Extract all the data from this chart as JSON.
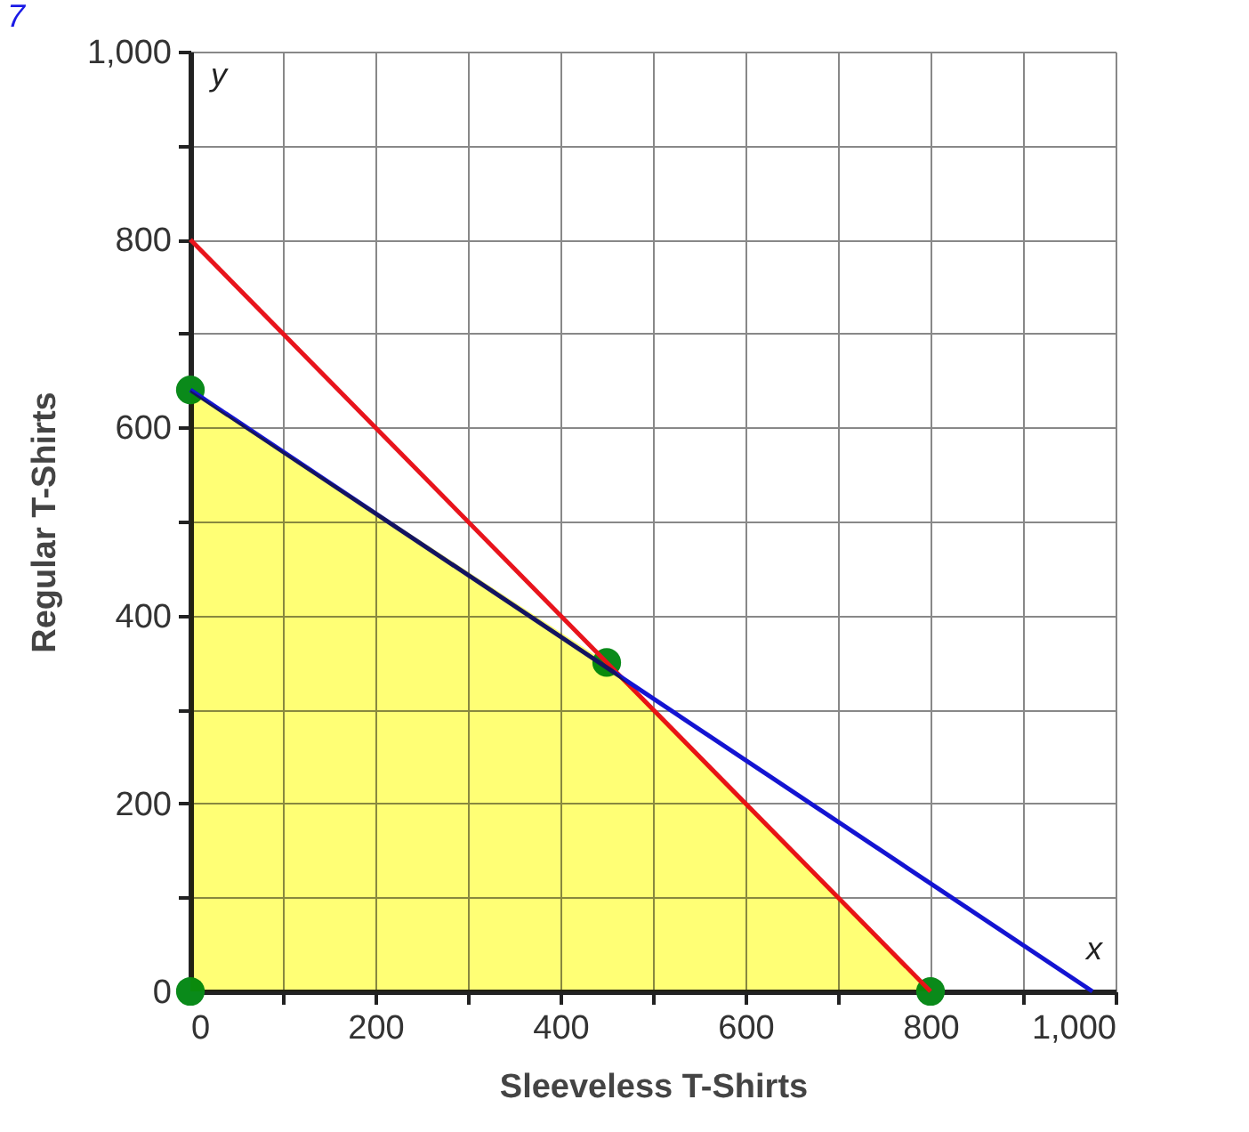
{
  "chart_data": {
    "type": "line",
    "xlabel": "Sleeveless T-Shirts",
    "ylabel": "Regular T-Shirts",
    "xlim": [
      0,
      1000
    ],
    "ylim": [
      0,
      1000
    ],
    "xticks": [
      0,
      {
        "value": 100,
        "label": null
      },
      200,
      {
        "value": 300,
        "label": null
      },
      400,
      {
        "value": 500,
        "label": null
      },
      600,
      {
        "value": 700,
        "label": null
      },
      800,
      {
        "value": 900,
        "label": null
      },
      {
        "value": 1000,
        "label": "1,000"
      }
    ],
    "yticks": [
      0,
      {
        "value": 100,
        "label": null
      },
      200,
      {
        "value": 300,
        "label": null
      },
      400,
      {
        "value": 500,
        "label": null
      },
      600,
      {
        "value": 700,
        "label": null
      },
      800,
      {
        "value": 900,
        "label": null
      },
      {
        "value": 1000,
        "label": "1,000"
      }
    ],
    "grid": true,
    "series": [
      {
        "type": "area",
        "color": "#ffff66",
        "x": [
          0,
          450,
          800
        ],
        "values": [
          640,
          350,
          0
        ]
      },
      {
        "type": "line",
        "color": "#e8141c",
        "x": [
          0,
          800
        ],
        "values": [
          800,
          0
        ]
      },
      {
        "type": "line",
        "color": "#1414d2",
        "x": [
          0,
          975
        ],
        "values": [
          640,
          0
        ]
      },
      {
        "type": "scatter",
        "color": "#0a8a1a",
        "marker": "circle",
        "x": [
          0,
          0,
          450,
          800
        ],
        "values": [
          0,
          640,
          350,
          0
        ]
      }
    ],
    "annotations": [
      "7",
      "y",
      "x"
    ]
  }
}
